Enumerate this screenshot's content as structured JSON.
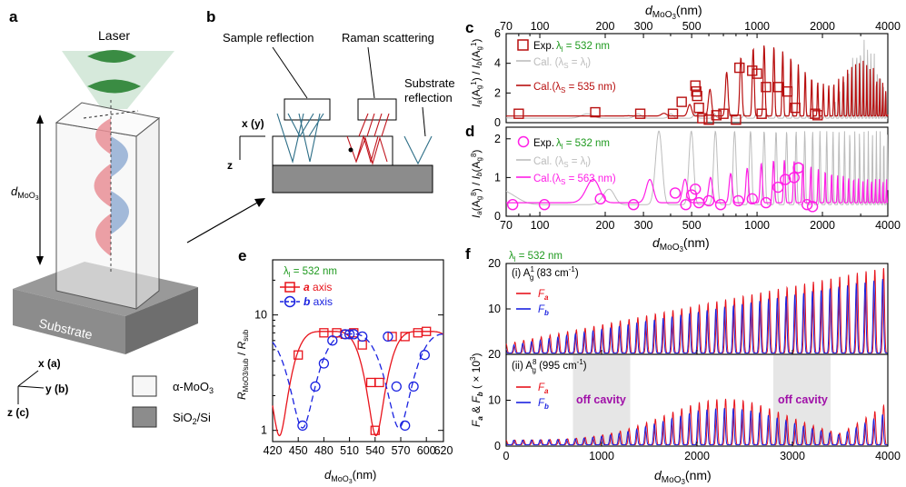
{
  "colors": {
    "red": "#e8141c",
    "dark_red": "#b80f0f",
    "blue": "#1a22e0",
    "magenta": "#ff1ee6",
    "green": "#1f9a1f",
    "gray": "#bcbcbc",
    "substrate": "#8c8c8c",
    "purple": "#a010a8"
  },
  "panel_a": {
    "label": "a",
    "laser": "Laser",
    "thickness_label": "d",
    "thickness_sub": "MoO",
    "thickness_sub3": "3",
    "substrate": "Substrate",
    "axis_x": "x (a)",
    "axis_y": "y (b)",
    "axis_z": "z (c)",
    "legend_moo3": "α-MoO",
    "legend_moo3_sub": "3",
    "legend_sio2": "SiO",
    "legend_sio2_sub": "2",
    "legend_sio2_rest": "/Si"
  },
  "panel_b": {
    "label": "b",
    "sample_reflection": "Sample reflection",
    "raman_scattering": "Raman scattering",
    "substrate_reflection_1": "Substrate",
    "substrate_reflection_2": "reflection",
    "axis_xy": "x (y)",
    "axis_z": "z"
  },
  "panel_c": {
    "label": "c",
    "top_axis_prefix": "d",
    "top_axis_sub": "MoO",
    "top_axis_sub3": "3",
    "top_axis_unit": "(nm)",
    "top_ticks": [
      "70",
      "100",
      "200",
      "300",
      "500",
      "1000",
      "2000",
      "4000"
    ],
    "y_ticks": [
      "0",
      "2",
      "4",
      "6"
    ],
    "y_label": "I_a(A_g^1) / I_b(A_g^1)",
    "legend_exp": "Exp.",
    "legend_exp_val": "λ",
    "legend_exp_sub": "l",
    "legend_exp_rest": " = 532 nm",
    "legend_cal1": "Cal. (λ",
    "legend_cal1_sub": "S",
    "legend_cal1_rest": " = λ",
    "legend_cal1_sub2": "l",
    "legend_cal1_end": ")",
    "legend_cal2": "Cal.(λ",
    "legend_cal2_sub": "S",
    "legend_cal2_rest": " = 535 nm)"
  },
  "panel_d": {
    "label": "d",
    "y_ticks": [
      "0",
      "1",
      "2"
    ],
    "y_label": "I_a(A_g^8) / I_b(A_g^8)",
    "x_ticks": [
      "70",
      "100",
      "200",
      "300",
      "500",
      "1000",
      "2000",
      "4000"
    ],
    "x_label_prefix": "d",
    "x_label_sub": "MoO",
    "x_label_sub3": "3",
    "x_label_unit": "(nm)",
    "legend_exp": "Exp.",
    "legend_exp_val": "λ",
    "legend_exp_sub": "l",
    "legend_exp_rest": " = 532 nm",
    "legend_cal1": "Cal. (λ",
    "legend_cal1_sub": "S",
    "legend_cal1_rest": " = λ",
    "legend_cal1_sub2": "l",
    "legend_cal1_end": ")",
    "legend_cal2": "Cal.(λ",
    "legend_cal2_sub": "S",
    "legend_cal2_rest": " = 563 nm)"
  },
  "panel_e": {
    "label": "e",
    "legend_title": "λ",
    "legend_title_sub": "l",
    "legend_title_rest": " = 532 nm",
    "legend_a": "a",
    "legend_a_rest": " axis",
    "legend_b": "b",
    "legend_b_rest": " axis",
    "y_ticks": [
      "1",
      "10"
    ],
    "x_ticks": [
      "420",
      "450",
      "480",
      "510",
      "540",
      "570",
      "600",
      "620"
    ],
    "y_label": "R_MoO3/sub / R_sub",
    "x_label_prefix": "d",
    "x_label_sub": "MoO",
    "x_label_sub3": "3",
    "x_label_unit": "(nm)"
  },
  "panel_f": {
    "label": "f",
    "lambda": "λ",
    "lambda_sub": "l",
    "lambda_rest": " = 532 nm",
    "sub1_title": "(i) A",
    "sub1_sup": "1",
    "sub1_sub": "g",
    "sub1_rest": " (83 cm",
    "sub1_unit_sup": "-1",
    "sub1_end": ")",
    "sub2_title": "(ii) A",
    "sub2_sup": "8",
    "sub2_sub": "g",
    "sub2_rest": " (995 cm",
    "sub2_unit_sup": "-1",
    "sub2_end": ")",
    "legend_fa": "F",
    "legend_fa_sub": "a",
    "legend_fb": "F",
    "legend_fb_sub": "b",
    "off_cavity": "off cavity",
    "y_ticks": [
      "0",
      "10",
      "20"
    ],
    "x_ticks": [
      "0",
      "1000",
      "2000",
      "3000",
      "4000"
    ],
    "y_label": "F_a & F_b (× 10^3)",
    "x_label_prefix": "d",
    "x_label_sub": "MoO",
    "x_label_sub3": "3",
    "x_label_unit": "(nm)"
  },
  "chart_data": [
    {
      "type": "line",
      "panel": "c",
      "title": "",
      "xlabel": "d_MoO3 (nm)",
      "ylabel": "I_a(A_g^1) / I_b(A_g^1)",
      "xscale": "log",
      "xlim": [
        70,
        4000
      ],
      "ylim": [
        0,
        6
      ],
      "series": [
        {
          "name": "Exp. λl = 532 nm",
          "style": "markers",
          "x": [
            80,
            180,
            290,
            410,
            450,
            520,
            525,
            530,
            540,
            560,
            600,
            650,
            700,
            800,
            830,
            950,
            1000,
            1050,
            1100,
            1250,
            1380,
            1500,
            1850,
            1900
          ],
          "y": [
            0.6,
            0.7,
            0.6,
            0.6,
            1.4,
            2.5,
            2.1,
            1.8,
            1.0,
            0.3,
            0.2,
            0.5,
            0.6,
            0.2,
            3.7,
            3.5,
            3.3,
            0.6,
            2.4,
            2.4,
            2.1,
            1.0,
            0.6,
            0.5
          ]
        },
        {
          "name": "Cal. (λS = λl)",
          "style": "line",
          "x": [],
          "y": []
        },
        {
          "name": "Cal.(λS = 535 nm)",
          "style": "line",
          "x": [],
          "y": []
        }
      ]
    },
    {
      "type": "line",
      "panel": "d",
      "xlabel": "d_MoO3 (nm)",
      "ylabel": "I_a(A_g^8) / I_b(A_g^8)",
      "xscale": "log",
      "xlim": [
        70,
        4000
      ],
      "ylim": [
        0,
        2.3
      ],
      "series": [
        {
          "name": "Exp. λl = 532 nm",
          "style": "markers",
          "x": [
            75,
            105,
            190,
            270,
            420,
            470,
            500,
            520,
            540,
            600,
            680,
            820,
            950,
            1100,
            1250,
            1350,
            1480,
            1550,
            1700,
            1800
          ],
          "y": [
            0.3,
            0.3,
            0.45,
            0.3,
            0.6,
            0.3,
            0.55,
            0.7,
            0.35,
            0.4,
            0.3,
            0.4,
            0.45,
            0.35,
            0.75,
            0.95,
            1.0,
            1.25,
            0.3,
            0.25
          ]
        },
        {
          "name": "Cal. (λS = λl)",
          "style": "line",
          "x": [],
          "y": []
        },
        {
          "name": "Cal.(λS = 563 nm)",
          "style": "line",
          "x": [],
          "y": []
        }
      ]
    },
    {
      "type": "line",
      "panel": "e",
      "xlabel": "d_MoO3 (nm)",
      "ylabel": "R_MoO3/sub / R_sub",
      "yscale": "log",
      "xlim": [
        420,
        620
      ],
      "ylim": [
        0.8,
        30
      ],
      "series": [
        {
          "name": "a axis",
          "style": "line+markers",
          "x": [
            450,
            480,
            495,
            505,
            515,
            525,
            535,
            540,
            545,
            560,
            575,
            590,
            600
          ],
          "y": [
            4.5,
            7.0,
            7.0,
            6.8,
            7.0,
            5.5,
            2.6,
            1.0,
            2.6,
            6.5,
            6.5,
            7.0,
            7.2
          ]
        },
        {
          "name": "b axis",
          "style": "dashed+markers",
          "x": [
            455,
            470,
            480,
            490,
            505,
            510,
            515,
            525,
            555,
            565,
            575,
            585,
            598
          ],
          "y": [
            1.1,
            2.4,
            3.8,
            6.0,
            6.8,
            6.8,
            6.8,
            6.5,
            6.5,
            2.4,
            1.1,
            2.4,
            4.5
          ]
        }
      ]
    },
    {
      "type": "line",
      "panel": "f",
      "subplots": [
        "(i) Ag1 (83 cm-1)",
        "(ii) Ag8 (995 cm-1)"
      ],
      "xlabel": "d_MoO3 (nm)",
      "ylabel": "F_a & F_b (× 10^3)",
      "xlim": [
        0,
        4000
      ],
      "ylim": [
        0,
        20
      ],
      "series": [
        {
          "name": "F_a (i)",
          "style": "line",
          "x": [],
          "y": []
        },
        {
          "name": "F_b (i)",
          "style": "line",
          "x": [],
          "y": []
        },
        {
          "name": "F_a (ii)",
          "style": "line",
          "x": [],
          "y": []
        },
        {
          "name": "F_b (ii)",
          "style": "line",
          "x": [],
          "y": []
        }
      ],
      "off_cavity_ranges": [
        [
          700,
          1300
        ],
        [
          2800,
          3400
        ]
      ]
    }
  ]
}
